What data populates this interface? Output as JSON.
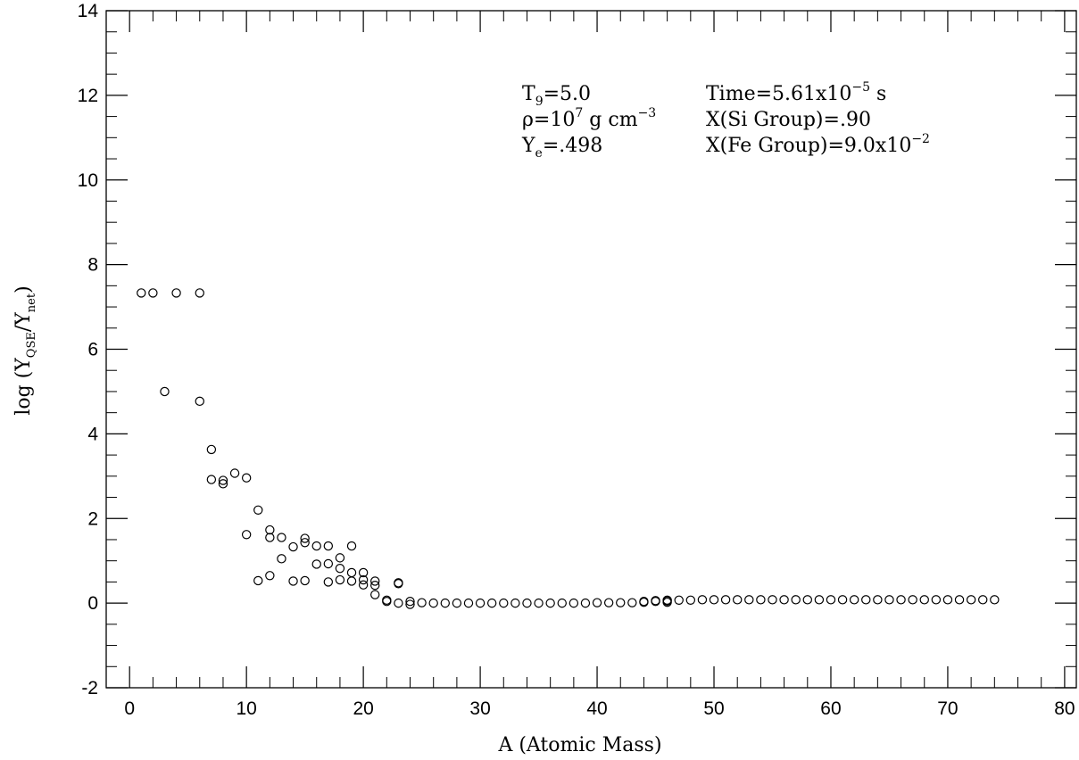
{
  "chart_data": {
    "type": "scatter",
    "xlabel": "A (Atomic Mass)",
    "ylabel": "log (Y_QSE/Y_net)",
    "ylabel_parts": {
      "prefix": "log (Y",
      "sub1": "QSE",
      "mid": "/Y",
      "sub2": "net",
      "suffix": ")"
    },
    "xlim": [
      -2,
      81
    ],
    "ylim": [
      -2,
      14
    ],
    "xticks": [
      0,
      10,
      20,
      30,
      40,
      50,
      60,
      70,
      80
    ],
    "yticks": [
      -2,
      0,
      2,
      4,
      6,
      8,
      10,
      12,
      14
    ],
    "grid": false,
    "marker": "open-circle",
    "annotations": [
      {
        "id": "t9",
        "parts": [
          "T",
          "9",
          "=5.0"
        ]
      },
      {
        "id": "time",
        "parts": [
          "Time=5.61x10",
          "−5",
          " s"
        ]
      },
      {
        "id": "rho",
        "parts": [
          "ρ=10",
          "7",
          " g cm",
          "−3"
        ]
      },
      {
        "id": "xsi",
        "parts": [
          "X(Si Group)=.90"
        ]
      },
      {
        "id": "ye",
        "parts": [
          "Y",
          "e",
          "=.498"
        ]
      },
      {
        "id": "xfe",
        "parts": [
          "X(Fe Group)=9.0x10",
          "−2"
        ]
      }
    ],
    "points": [
      [
        1,
        7.33
      ],
      [
        2,
        7.33
      ],
      [
        4,
        7.33
      ],
      [
        6,
        7.33
      ],
      [
        3,
        5.0
      ],
      [
        6,
        4.77
      ],
      [
        7,
        3.63
      ],
      [
        7,
        2.92
      ],
      [
        8,
        2.9
      ],
      [
        8,
        2.82
      ],
      [
        9,
        3.07
      ],
      [
        10,
        2.96
      ],
      [
        10,
        1.62
      ],
      [
        11,
        2.2
      ],
      [
        11,
        0.53
      ],
      [
        12,
        1.73
      ],
      [
        12,
        1.55
      ],
      [
        12,
        0.65
      ],
      [
        13,
        1.55
      ],
      [
        13,
        1.05
      ],
      [
        14,
        1.33
      ],
      [
        14,
        0.52
      ],
      [
        15,
        1.53
      ],
      [
        15,
        1.43
      ],
      [
        15,
        0.53
      ],
      [
        16,
        1.35
      ],
      [
        16,
        0.92
      ],
      [
        17,
        1.35
      ],
      [
        17,
        0.93
      ],
      [
        17,
        0.5
      ],
      [
        18,
        1.07
      ],
      [
        18,
        0.82
      ],
      [
        18,
        0.55
      ],
      [
        19,
        1.35
      ],
      [
        19,
        0.72
      ],
      [
        19,
        0.52
      ],
      [
        20,
        0.72
      ],
      [
        20,
        0.55
      ],
      [
        20,
        0.43
      ],
      [
        21,
        0.52
      ],
      [
        21,
        0.42
      ],
      [
        21,
        0.2
      ],
      [
        22,
        0.07
      ],
      [
        22,
        0.04
      ],
      [
        23,
        0.48
      ],
      [
        23,
        0.46
      ],
      [
        23,
        0.0
      ],
      [
        24,
        0.04
      ],
      [
        24,
        -0.03
      ],
      [
        25,
        0.01
      ],
      [
        26,
        0.0
      ],
      [
        27,
        0.0
      ],
      [
        28,
        0.0
      ],
      [
        29,
        0.0
      ],
      [
        30,
        0.0
      ],
      [
        31,
        0.0
      ],
      [
        32,
        0.0
      ],
      [
        33,
        0.0
      ],
      [
        34,
        0.0
      ],
      [
        35,
        0.0
      ],
      [
        36,
        0.0
      ],
      [
        37,
        0.0
      ],
      [
        38,
        0.0
      ],
      [
        39,
        0.0
      ],
      [
        40,
        0.01
      ],
      [
        41,
        0.01
      ],
      [
        42,
        0.01
      ],
      [
        43,
        0.01
      ],
      [
        44,
        0.02
      ],
      [
        44,
        0.04
      ],
      [
        45,
        0.04
      ],
      [
        45,
        0.06
      ],
      [
        46,
        0.02
      ],
      [
        46,
        0.05
      ],
      [
        46,
        0.07
      ],
      [
        47,
        0.07
      ],
      [
        48,
        0.07
      ],
      [
        49,
        0.08
      ],
      [
        50,
        0.08
      ],
      [
        51,
        0.08
      ],
      [
        52,
        0.08
      ],
      [
        53,
        0.08
      ],
      [
        54,
        0.08
      ],
      [
        55,
        0.08
      ],
      [
        56,
        0.08
      ],
      [
        57,
        0.08
      ],
      [
        58,
        0.08
      ],
      [
        59,
        0.08
      ],
      [
        60,
        0.08
      ],
      [
        61,
        0.08
      ],
      [
        62,
        0.08
      ],
      [
        63,
        0.08
      ],
      [
        64,
        0.08
      ],
      [
        65,
        0.08
      ],
      [
        66,
        0.08
      ],
      [
        67,
        0.08
      ],
      [
        68,
        0.08
      ],
      [
        69,
        0.08
      ],
      [
        70,
        0.08
      ],
      [
        71,
        0.08
      ],
      [
        72,
        0.08
      ],
      [
        73,
        0.08
      ],
      [
        74,
        0.08
      ]
    ]
  }
}
